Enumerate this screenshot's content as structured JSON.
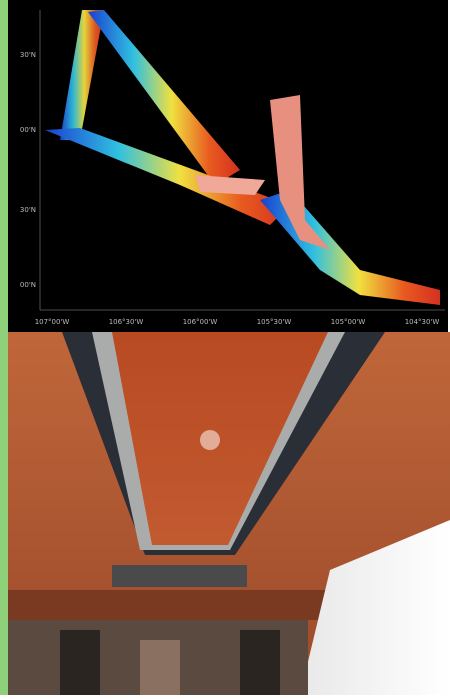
{
  "map": {
    "y_labels": [
      "30'N",
      "00'N",
      "30'N",
      "00'N"
    ],
    "x_labels": [
      "107°00'W",
      "106°30'W",
      "106°00'W",
      "105°30'W",
      "105°00'W",
      "104°30'W"
    ]
  }
}
